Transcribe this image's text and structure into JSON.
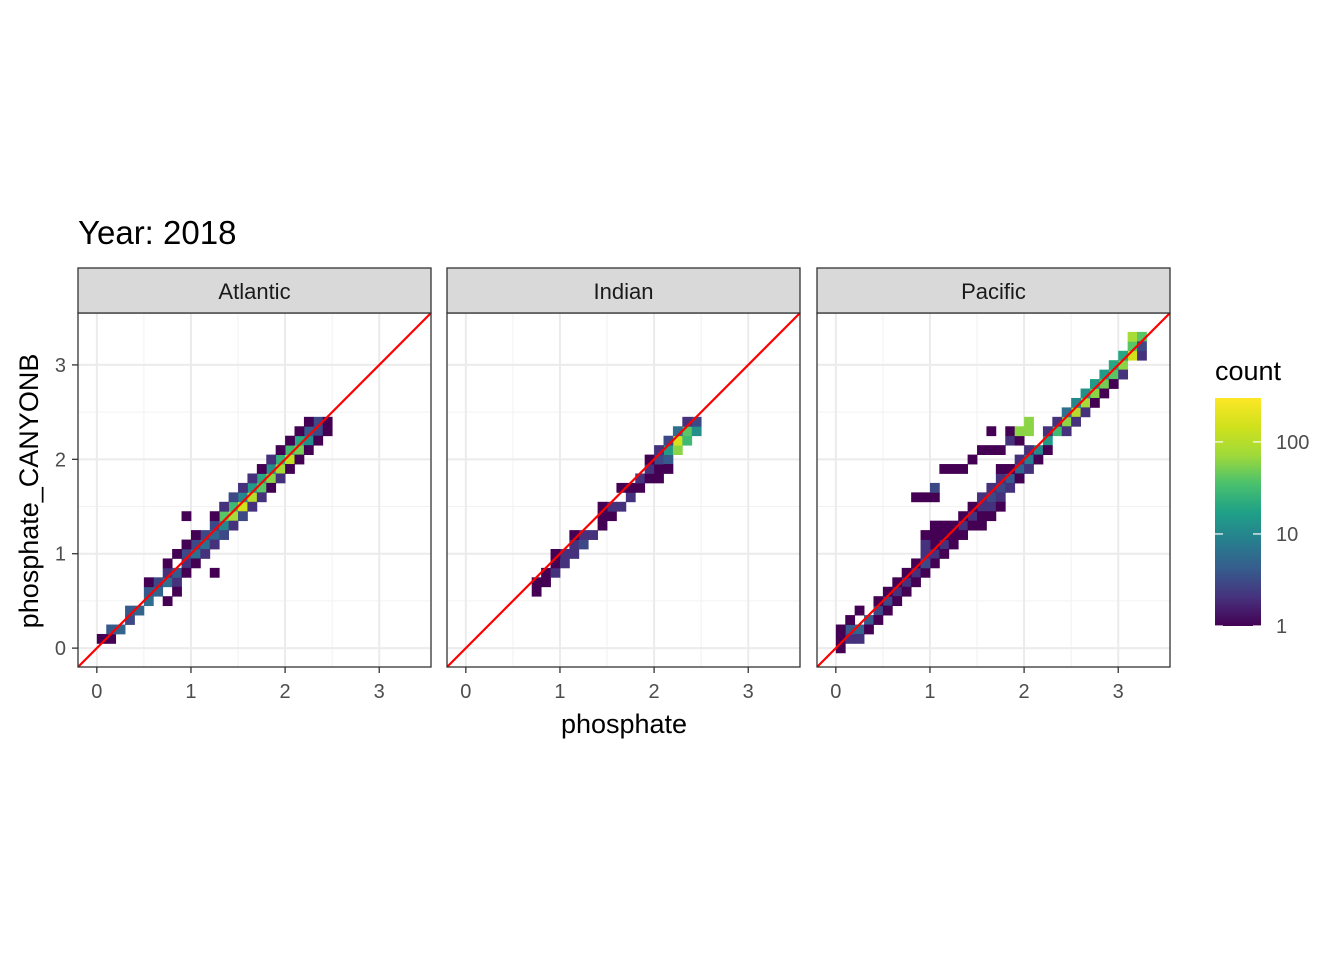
{
  "chart_data": {
    "type": "heatmap",
    "title": "Year: 2018",
    "xlabel": "phosphate",
    "ylabel": "phosphate_CANYONB",
    "xlim": [
      -0.2,
      3.55
    ],
    "ylim": [
      -0.2,
      3.55
    ],
    "x_ticks": [
      "0",
      "1",
      "2",
      "3"
    ],
    "y_ticks": [
      "0",
      "1",
      "2",
      "3"
    ],
    "bin_width": 0.1,
    "reference_line": {
      "slope": 1,
      "intercept": 0,
      "color": "#ff0000"
    },
    "grid": true,
    "legend": {
      "title": "count",
      "scale": "log10",
      "range": [
        1,
        300
      ],
      "labels": [
        "1",
        "10",
        "100"
      ],
      "position": "right"
    },
    "facets": [
      {
        "name": "Atlantic",
        "cells": [
          [
            0.05,
            0.1,
            1
          ],
          [
            0.15,
            0.1,
            1
          ],
          [
            0.15,
            0.2,
            4
          ],
          [
            0.25,
            0.2,
            5
          ],
          [
            0.35,
            0.3,
            3
          ],
          [
            0.35,
            0.4,
            4
          ],
          [
            0.45,
            0.4,
            5
          ],
          [
            0.55,
            0.5,
            6
          ],
          [
            0.55,
            0.6,
            4
          ],
          [
            0.65,
            0.6,
            5
          ],
          [
            0.65,
            0.7,
            3
          ],
          [
            0.75,
            0.7,
            6
          ],
          [
            0.75,
            0.8,
            2
          ],
          [
            0.85,
            0.7,
            2
          ],
          [
            0.85,
            0.8,
            4
          ],
          [
            0.95,
            0.9,
            2
          ],
          [
            0.95,
            1.0,
            3
          ],
          [
            1.05,
            1.0,
            6
          ],
          [
            1.05,
            1.1,
            3
          ],
          [
            1.15,
            1.1,
            6
          ],
          [
            1.15,
            1.2,
            3
          ],
          [
            1.25,
            1.2,
            5
          ],
          [
            1.25,
            1.3,
            3
          ],
          [
            1.35,
            1.3,
            10
          ],
          [
            1.35,
            1.4,
            40
          ],
          [
            1.45,
            1.4,
            80
          ],
          [
            1.45,
            1.5,
            30
          ],
          [
            1.55,
            1.5,
            150
          ],
          [
            1.55,
            1.6,
            10
          ],
          [
            1.65,
            1.6,
            100
          ],
          [
            1.65,
            1.7,
            15
          ],
          [
            1.75,
            1.7,
            40
          ],
          [
            1.75,
            1.8,
            20
          ],
          [
            1.85,
            1.8,
            60
          ],
          [
            1.85,
            1.9,
            12
          ],
          [
            1.95,
            1.9,
            80
          ],
          [
            1.95,
            2.0,
            25
          ],
          [
            2.05,
            2.0,
            120
          ],
          [
            2.05,
            2.1,
            30
          ],
          [
            2.15,
            2.1,
            50
          ],
          [
            2.15,
            2.2,
            20
          ],
          [
            2.25,
            2.2,
            12
          ],
          [
            2.25,
            2.3,
            4
          ],
          [
            2.35,
            2.3,
            3
          ],
          [
            2.35,
            2.4,
            3
          ],
          [
            2.45,
            2.4,
            1
          ],
          [
            0.75,
            0.5,
            1
          ],
          [
            0.85,
            0.6,
            1
          ],
          [
            0.95,
            0.8,
            1
          ],
          [
            1.05,
            0.9,
            1
          ],
          [
            1.15,
            1.0,
            2
          ],
          [
            1.25,
            1.1,
            2
          ],
          [
            1.35,
            1.2,
            3
          ],
          [
            1.45,
            1.3,
            2
          ],
          [
            1.55,
            1.4,
            3
          ],
          [
            1.65,
            1.5,
            2
          ],
          [
            1.75,
            1.6,
            2
          ],
          [
            1.85,
            1.7,
            1
          ],
          [
            1.95,
            1.8,
            2
          ],
          [
            2.05,
            1.9,
            1
          ],
          [
            2.15,
            2.0,
            1
          ],
          [
            2.25,
            2.1,
            1
          ],
          [
            2.35,
            2.2,
            1
          ],
          [
            2.45,
            2.3,
            1
          ],
          [
            0.95,
            1.1,
            1
          ],
          [
            1.05,
            1.2,
            1
          ],
          [
            1.25,
            1.4,
            1
          ],
          [
            1.35,
            1.5,
            2
          ],
          [
            1.45,
            1.6,
            3
          ],
          [
            1.55,
            1.7,
            2
          ],
          [
            1.65,
            1.8,
            2
          ],
          [
            1.75,
            1.9,
            1
          ],
          [
            1.85,
            2.0,
            2
          ],
          [
            1.95,
            2.1,
            1
          ],
          [
            2.05,
            2.2,
            1
          ],
          [
            2.15,
            2.3,
            1
          ],
          [
            2.25,
            2.4,
            1
          ],
          [
            0.55,
            0.7,
            1
          ],
          [
            0.75,
            0.9,
            1
          ],
          [
            0.85,
            1.0,
            1
          ],
          [
            0.95,
            1.4,
            1
          ],
          [
            1.25,
            0.8,
            1
          ]
        ]
      },
      {
        "name": "Indian",
        "cells": [
          [
            0.75,
            0.6,
            1
          ],
          [
            0.75,
            0.7,
            1
          ],
          [
            0.85,
            0.7,
            1
          ],
          [
            0.85,
            0.8,
            1
          ],
          [
            0.95,
            0.8,
            2
          ],
          [
            0.95,
            0.9,
            1
          ],
          [
            1.05,
            0.9,
            2
          ],
          [
            1.05,
            1.0,
            2
          ],
          [
            1.15,
            1.0,
            2
          ],
          [
            1.15,
            1.1,
            2
          ],
          [
            1.25,
            1.1,
            3
          ],
          [
            1.25,
            1.2,
            2
          ],
          [
            1.35,
            1.2,
            2
          ],
          [
            1.45,
            1.3,
            1
          ],
          [
            1.55,
            1.4,
            1
          ],
          [
            1.55,
            1.5,
            2
          ],
          [
            1.65,
            1.5,
            2
          ],
          [
            1.75,
            1.6,
            2
          ],
          [
            1.75,
            1.7,
            1
          ],
          [
            1.85,
            1.7,
            1
          ],
          [
            1.85,
            1.8,
            2
          ],
          [
            1.95,
            1.8,
            1
          ],
          [
            1.95,
            1.9,
            2
          ],
          [
            2.05,
            1.9,
            1
          ],
          [
            2.05,
            2.0,
            3
          ],
          [
            2.15,
            2.0,
            4
          ],
          [
            2.15,
            2.1,
            15
          ],
          [
            2.25,
            2.1,
            60
          ],
          [
            2.25,
            2.2,
            150
          ],
          [
            2.35,
            2.2,
            30
          ],
          [
            2.35,
            2.3,
            40
          ],
          [
            2.45,
            2.3,
            12
          ],
          [
            2.45,
            2.4,
            3
          ],
          [
            0.95,
            1.0,
            1
          ],
          [
            1.15,
            1.2,
            1
          ],
          [
            1.45,
            1.5,
            1
          ],
          [
            1.65,
            1.7,
            1
          ],
          [
            1.95,
            2.0,
            1
          ],
          [
            2.05,
            2.1,
            2
          ],
          [
            2.15,
            2.2,
            3
          ],
          [
            2.25,
            2.3,
            6
          ],
          [
            2.35,
            2.4,
            2
          ],
          [
            2.05,
            1.8,
            1
          ],
          [
            2.15,
            1.9,
            1
          ],
          [
            1.45,
            1.4,
            1
          ]
        ]
      },
      {
        "name": "Pacific",
        "cells": [
          [
            0.05,
            0.0,
            1
          ],
          [
            0.05,
            0.1,
            1
          ],
          [
            0.15,
            0.1,
            2
          ],
          [
            0.15,
            0.2,
            4
          ],
          [
            0.25,
            0.2,
            5
          ],
          [
            0.35,
            0.3,
            4
          ],
          [
            0.45,
            0.4,
            3
          ],
          [
            0.55,
            0.5,
            3
          ],
          [
            0.65,
            0.6,
            2
          ],
          [
            0.75,
            0.7,
            2
          ],
          [
            0.85,
            0.8,
            2
          ],
          [
            0.95,
            0.9,
            2
          ],
          [
            1.05,
            1.0,
            2
          ],
          [
            1.15,
            1.1,
            2
          ],
          [
            1.25,
            1.2,
            2
          ],
          [
            1.35,
            1.3,
            2
          ],
          [
            1.45,
            1.4,
            2
          ],
          [
            1.55,
            1.5,
            2
          ],
          [
            1.65,
            1.6,
            3
          ],
          [
            1.75,
            1.7,
            3
          ],
          [
            1.85,
            1.8,
            4
          ],
          [
            1.95,
            1.9,
            5
          ],
          [
            2.05,
            2.0,
            8
          ],
          [
            2.15,
            2.1,
            10
          ],
          [
            2.25,
            2.2,
            15
          ],
          [
            2.35,
            2.3,
            30
          ],
          [
            2.45,
            2.4,
            60
          ],
          [
            2.55,
            2.5,
            100
          ],
          [
            2.65,
            2.6,
            80
          ],
          [
            2.75,
            2.7,
            60
          ],
          [
            2.85,
            2.8,
            50
          ],
          [
            2.95,
            2.9,
            40
          ],
          [
            3.05,
            3.0,
            60
          ],
          [
            3.15,
            3.1,
            150
          ],
          [
            3.15,
            3.2,
            40
          ],
          [
            0.25,
            0.1,
            2
          ],
          [
            0.35,
            0.2,
            1
          ],
          [
            0.45,
            0.3,
            1
          ],
          [
            0.55,
            0.4,
            1
          ],
          [
            0.65,
            0.5,
            1
          ],
          [
            0.75,
            0.6,
            1
          ],
          [
            0.85,
            0.7,
            1
          ],
          [
            0.95,
            0.8,
            1
          ],
          [
            1.05,
            0.9,
            1
          ],
          [
            1.15,
            1.0,
            1
          ],
          [
            1.25,
            1.1,
            1
          ],
          [
            1.35,
            1.2,
            1
          ],
          [
            1.45,
            1.3,
            1
          ],
          [
            1.55,
            1.4,
            1
          ],
          [
            1.65,
            1.5,
            2
          ],
          [
            1.75,
            1.6,
            2
          ],
          [
            1.85,
            1.7,
            2
          ],
          [
            1.95,
            1.8,
            2
          ],
          [
            2.05,
            1.9,
            2
          ],
          [
            2.15,
            2.0,
            1
          ],
          [
            2.25,
            2.1,
            1
          ],
          [
            2.45,
            2.3,
            2
          ],
          [
            2.55,
            2.4,
            2
          ],
          [
            2.65,
            2.5,
            2
          ],
          [
            2.75,
            2.6,
            1
          ],
          [
            2.85,
            2.7,
            1
          ],
          [
            2.95,
            2.8,
            1
          ],
          [
            3.05,
            2.9,
            2
          ],
          [
            3.25,
            3.1,
            2
          ],
          [
            0.05,
            0.2,
            1
          ],
          [
            0.15,
            0.3,
            1
          ],
          [
            0.25,
            0.4,
            1
          ],
          [
            0.45,
            0.5,
            1
          ],
          [
            0.55,
            0.6,
            1
          ],
          [
            0.65,
            0.7,
            1
          ],
          [
            0.75,
            0.8,
            1
          ],
          [
            0.85,
            0.9,
            1
          ],
          [
            1.05,
            1.1,
            1
          ],
          [
            1.15,
            1.2,
            1
          ],
          [
            1.25,
            1.3,
            1
          ],
          [
            1.35,
            1.4,
            1
          ],
          [
            1.45,
            1.5,
            1
          ],
          [
            1.55,
            1.6,
            2
          ],
          [
            1.65,
            1.7,
            2
          ],
          [
            1.75,
            1.8,
            2
          ],
          [
            1.85,
            1.9,
            1
          ],
          [
            1.95,
            2.0,
            2
          ],
          [
            2.05,
            2.1,
            2
          ],
          [
            2.25,
            2.3,
            2
          ],
          [
            2.35,
            2.4,
            2
          ],
          [
            2.45,
            2.5,
            6
          ],
          [
            2.55,
            2.6,
            10
          ],
          [
            2.65,
            2.7,
            12
          ],
          [
            2.75,
            2.8,
            15
          ],
          [
            2.85,
            2.9,
            15
          ],
          [
            2.95,
            3.0,
            20
          ],
          [
            3.05,
            3.1,
            20
          ],
          [
            3.15,
            3.3,
            80
          ],
          [
            3.25,
            3.3,
            40
          ],
          [
            3.25,
            3.2,
            3
          ],
          [
            0.95,
            1.0,
            2
          ],
          [
            0.95,
            1.1,
            2
          ],
          [
            0.95,
            1.2,
            1
          ],
          [
            1.05,
            1.2,
            1
          ],
          [
            1.15,
            1.2,
            1
          ],
          [
            1.25,
            1.2,
            1
          ],
          [
            1.15,
            1.3,
            1
          ],
          [
            1.05,
            1.3,
            1
          ],
          [
            0.95,
            0.9,
            3
          ],
          [
            1.55,
            1.3,
            1
          ],
          [
            1.65,
            1.4,
            1
          ],
          [
            1.75,
            1.5,
            1
          ],
          [
            0.85,
            1.6,
            1
          ],
          [
            0.95,
            1.6,
            1
          ],
          [
            1.05,
            1.6,
            1
          ],
          [
            1.05,
            1.7,
            3
          ],
          [
            1.15,
            1.9,
            1
          ],
          [
            1.25,
            1.9,
            1
          ],
          [
            1.35,
            1.9,
            1
          ],
          [
            1.45,
            2.0,
            1
          ],
          [
            1.55,
            2.1,
            1
          ],
          [
            1.65,
            2.1,
            1
          ],
          [
            1.75,
            2.1,
            1
          ],
          [
            1.85,
            2.2,
            2
          ],
          [
            1.95,
            2.2,
            1
          ],
          [
            1.65,
            2.3,
            1
          ],
          [
            1.85,
            2.3,
            1
          ],
          [
            1.95,
            2.3,
            60
          ],
          [
            2.05,
            2.3,
            60
          ],
          [
            2.05,
            2.4,
            60
          ],
          [
            1.75,
            1.9,
            1
          ],
          [
            1.95,
            1.8,
            1
          ]
        ]
      }
    ]
  }
}
